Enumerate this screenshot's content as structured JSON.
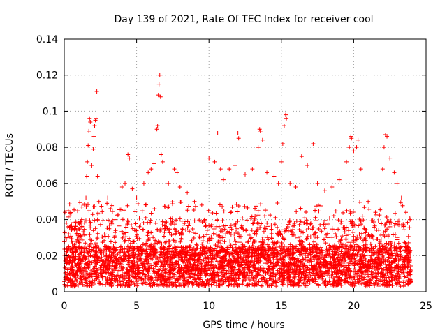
{
  "chart_data": {
    "type": "scatter",
    "title": "Day 139 of 2021, Rate Of TEC Index for receiver cool",
    "xlabel": "GPS time / hours",
    "ylabel": "ROTI / TECUs",
    "xlim": [
      0,
      25
    ],
    "ylim": [
      0,
      0.14
    ],
    "x_ticks": [
      "0",
      "5",
      "10",
      "15",
      "20",
      "25"
    ],
    "y_ticks": [
      "0",
      "0.02",
      "0.04",
      "0.06",
      "0.08",
      "0.1",
      "0.12",
      "0.14"
    ],
    "grid": true,
    "marker": "plus",
    "color": "#ff0000",
    "x_range_of_data": [
      0,
      24
    ],
    "series": [
      {
        "values": [
          [
            0.05,
            0.044
          ],
          [
            0.1,
            0.03
          ],
          [
            0.15,
            0.038
          ],
          [
            0.25,
            0.036
          ],
          [
            0.3,
            0.032
          ],
          [
            0.5,
            0.028
          ],
          [
            0.7,
            0.035
          ],
          [
            1.0,
            0.031
          ],
          [
            1.2,
            0.04
          ],
          [
            1.4,
            0.048
          ],
          [
            1.5,
            0.052
          ],
          [
            1.55,
            0.064
          ],
          [
            1.6,
            0.072
          ],
          [
            1.65,
            0.081
          ],
          [
            1.7,
            0.089
          ],
          [
            1.75,
            0.096
          ],
          [
            1.8,
            0.094
          ],
          [
            1.9,
            0.07
          ],
          [
            2.0,
            0.079
          ],
          [
            2.05,
            0.086
          ],
          [
            2.1,
            0.092
          ],
          [
            2.15,
            0.095
          ],
          [
            2.2,
            0.096
          ],
          [
            2.25,
            0.111
          ],
          [
            2.3,
            0.064
          ],
          [
            2.4,
            0.05
          ],
          [
            3.0,
            0.052
          ],
          [
            3.2,
            0.046
          ],
          [
            3.5,
            0.04
          ],
          [
            4.0,
            0.058
          ],
          [
            4.2,
            0.06
          ],
          [
            4.4,
            0.076
          ],
          [
            4.5,
            0.074
          ],
          [
            4.7,
            0.057
          ],
          [
            5.0,
            0.052
          ],
          [
            5.5,
            0.06
          ],
          [
            5.8,
            0.066
          ],
          [
            6.0,
            0.068
          ],
          [
            6.2,
            0.071
          ],
          [
            6.4,
            0.09
          ],
          [
            6.45,
            0.092
          ],
          [
            6.5,
            0.109
          ],
          [
            6.55,
            0.115
          ],
          [
            6.6,
            0.12
          ],
          [
            6.65,
            0.108
          ],
          [
            6.7,
            0.076
          ],
          [
            6.8,
            0.072
          ],
          [
            7.2,
            0.06
          ],
          [
            7.6,
            0.068
          ],
          [
            7.8,
            0.066
          ],
          [
            8.0,
            0.058
          ],
          [
            8.5,
            0.055
          ],
          [
            9.0,
            0.05
          ],
          [
            9.5,
            0.048
          ],
          [
            10.0,
            0.074
          ],
          [
            10.4,
            0.072
          ],
          [
            10.6,
            0.088
          ],
          [
            10.8,
            0.068
          ],
          [
            11.0,
            0.062
          ],
          [
            11.4,
            0.068
          ],
          [
            11.8,
            0.07
          ],
          [
            12.0,
            0.088
          ],
          [
            12.05,
            0.085
          ],
          [
            12.5,
            0.065
          ],
          [
            13.0,
            0.068
          ],
          [
            13.4,
            0.08
          ],
          [
            13.5,
            0.09
          ],
          [
            13.55,
            0.089
          ],
          [
            13.7,
            0.084
          ],
          [
            14.0,
            0.066
          ],
          [
            14.5,
            0.064
          ],
          [
            14.8,
            0.06
          ],
          [
            15.0,
            0.072
          ],
          [
            15.1,
            0.082
          ],
          [
            15.2,
            0.092
          ],
          [
            15.3,
            0.098
          ],
          [
            15.35,
            0.096
          ],
          [
            15.6,
            0.06
          ],
          [
            16.0,
            0.058
          ],
          [
            16.4,
            0.075
          ],
          [
            16.8,
            0.07
          ],
          [
            17.2,
            0.082
          ],
          [
            17.5,
            0.06
          ],
          [
            18.0,
            0.056
          ],
          [
            18.5,
            0.058
          ],
          [
            19.0,
            0.062
          ],
          [
            19.5,
            0.072
          ],
          [
            19.7,
            0.08
          ],
          [
            19.8,
            0.086
          ],
          [
            19.85,
            0.085
          ],
          [
            20.0,
            0.078
          ],
          [
            20.2,
            0.08
          ],
          [
            20.3,
            0.084
          ],
          [
            20.5,
            0.068
          ],
          [
            21.0,
            0.05
          ],
          [
            21.5,
            0.044
          ],
          [
            22.0,
            0.068
          ],
          [
            22.1,
            0.08
          ],
          [
            22.2,
            0.087
          ],
          [
            22.3,
            0.086
          ],
          [
            22.5,
            0.074
          ],
          [
            22.8,
            0.066
          ],
          [
            23.0,
            0.06
          ],
          [
            23.3,
            0.052
          ],
          [
            23.6,
            0.044
          ],
          [
            23.9,
            0.04
          ]
        ]
      }
    ]
  }
}
